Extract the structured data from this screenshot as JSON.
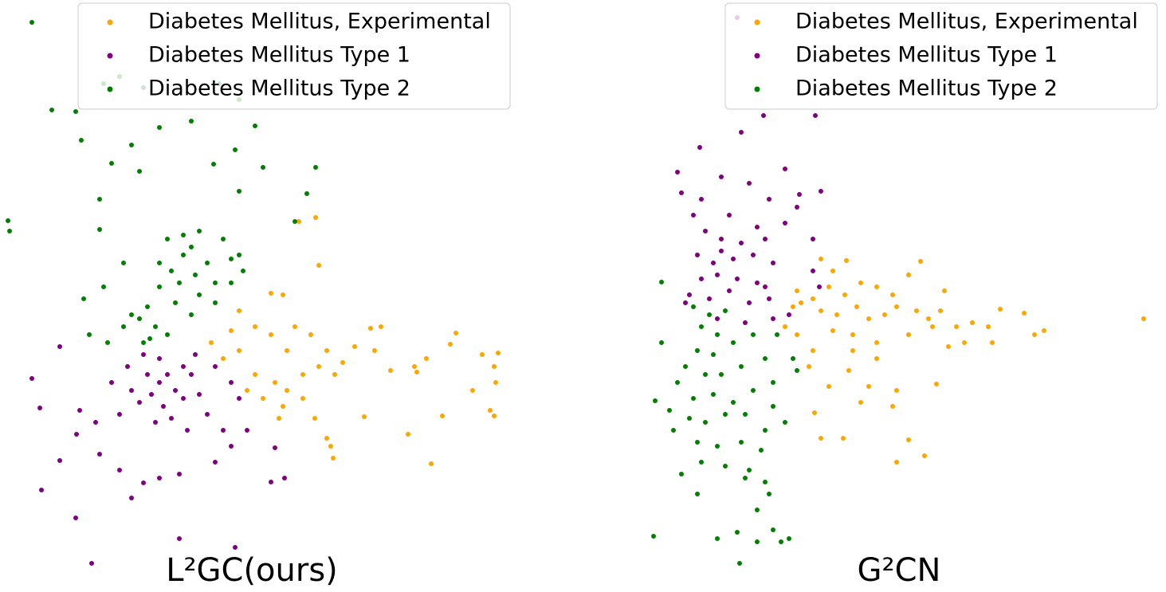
{
  "chart_data": [
    {
      "type": "scatter",
      "title": "L²GC(ours)",
      "legend": "upper right",
      "xlim": [
        0,
        640
      ],
      "ylim": [
        720,
        0
      ],
      "series": [
        {
          "name": "Diabetes Mellitus, Experimental",
          "color": "#ffa500",
          "x": [
            375,
            396,
            400,
            340,
            355,
            300,
            320,
            340,
            370,
            390,
            410,
            300,
            280,
            320,
            345,
            360,
            380,
            400,
            420,
            330,
            355,
            310,
            380,
            430,
            445,
            465,
            478,
            470,
            490,
            520,
            523,
            535,
            565,
            572,
            605,
            625,
            620,
            622,
            593,
            615,
            620,
            555,
            541,
            512,
            457,
            415,
            418,
            410,
            395,
            350,
            265,
            290,
            360
          ],
          "values": [
            278,
            273,
            333,
            368,
            370,
            390,
            410,
            420,
            410,
            420,
            440,
            440,
            450,
            470,
            480,
            490,
            470,
            460,
            470,
            500,
            510,
            490,
            500,
            455,
            435,
            412,
            410,
            440,
            465,
            460,
            467,
            450,
            432,
            418,
            445,
            443,
            460,
            480,
            490,
            515,
            522,
            522,
            582,
            545,
            523,
            560,
            575,
            550,
            525,
            525,
            430,
            415,
            440
          ]
        },
        {
          "name": "Diabetes Mellitus Type 1",
          "color": "#800080",
          "x": [
            75,
            40,
            50,
            100,
            96,
            75,
            52,
            95,
            115,
            150,
            125,
            165,
            180,
            225,
            295,
            340,
            357,
            345,
            290,
            310,
            210,
            200,
            220,
            190,
            230,
            205,
            185,
            240,
            250,
            175,
            215,
            195,
            230,
            160,
            165,
            260,
            270,
            290,
            150,
            120,
            235,
            200,
            180,
            245,
            300,
            280,
            140,
            225,
            200,
            270
          ],
          "values": [
            435,
            475,
            512,
            515,
            545,
            578,
            615,
            650,
            707,
            590,
            570,
            625,
            606,
            676,
            687,
            605,
            600,
            562,
            560,
            540,
            470,
            480,
            490,
            495,
            500,
            510,
            470,
            470,
            495,
            505,
            525,
            530,
            460,
            460,
            490,
            520,
            460,
            480,
            520,
            530,
            540,
            450,
            445,
            445,
            500,
            540,
            480,
            595,
            600,
            580
          ]
        },
        {
          "name": "Diabetes Mellitus Type 2",
          "color": "#008000",
          "x": [
            40,
            150,
            65,
            95,
            130,
            180,
            102,
            165,
            200,
            240,
            275,
            300,
            320,
            295,
            140,
            268,
            330,
            396,
            125,
            175,
            300,
            385,
            10,
            12,
            125,
            370,
            210,
            230,
            250,
            280,
            290,
            260,
            230,
            215,
            245,
            270,
            200,
            185,
            220,
            250,
            175,
            195,
            210,
            180,
            130,
            105,
            112,
            135,
            155,
            305,
            270,
            240,
            165,
            225,
            290,
            300,
            200,
            188,
            240,
            155
          ],
          "values": [
            28,
            96,
            138,
            140,
            105,
            110,
            176,
            182,
            160,
            152,
            105,
            125,
            158,
            188,
            205,
            206,
            210,
            210,
            250,
            215,
            240,
            243,
            277,
            290,
            288,
            278,
            300,
            295,
            290,
            300,
            325,
            330,
            320,
            340,
            345,
            355,
            360,
            385,
            380,
            370,
            400,
            410,
            420,
            430,
            360,
            375,
            420,
            430,
            330,
            340,
            380,
            395,
            395,
            355,
            355,
            320,
            330,
            425,
            310,
            410
          ]
        }
      ]
    },
    {
      "type": "scatter",
      "title": "G²CN",
      "legend": "upper right",
      "xlim": [
        810,
        1452
      ],
      "ylim": [
        720,
        0
      ],
      "series": [
        {
          "name": "Diabetes Mellitus, Experimental",
          "color": "#ffa500",
          "x": [
            1020,
            1030,
            1045,
            1062,
            1000,
            1020,
            1040,
            1060,
            1080,
            1100,
            1120,
            1140,
            1155,
            1005,
            1030,
            1050,
            1075,
            1090,
            1110,
            1125,
            1150,
            1165,
            1185,
            1180,
            1200,
            1220,
            1240,
            1255,
            1285,
            1298,
            1310,
            1245,
            1210,
            1190,
            1170,
            1140,
            1100,
            1070,
            1045,
            1020,
            1000,
            985,
            1070,
            1100,
            1065,
            1015,
            1040,
            1090,
            1125,
            1175,
            1120,
            1080,
            1022,
            1030,
            1058,
            1140,
            1125,
            1160,
            1435,
            995
          ],
          "values": [
            300,
            325,
            340,
            327,
            365,
            375,
            360,
            370,
            355,
            360,
            370,
            345,
            328,
            380,
            390,
            395,
            385,
            400,
            395,
            385,
            390,
            400,
            365,
            390,
            410,
            405,
            410,
            388,
            393,
            420,
            415,
            430,
            430,
            435,
            410,
            420,
            430,
            420,
            415,
            440,
            420,
            410,
            440,
            450,
            465,
            460,
            485,
            485,
            490,
            482,
            510,
            505,
            518,
            550,
            550,
            552,
            580,
            572,
            400,
            385
          ]
        },
        {
          "name": "Diabetes Mellitus Type 1",
          "color": "#800080",
          "x": [
            925,
            958,
            1023,
            930,
            878,
            850,
            905,
            940,
            985,
            1003,
            1030,
            855,
            880,
            965,
            1000,
            870,
            915,
            950,
            985,
            1020,
            885,
            905,
            930,
            960,
            875,
            895,
            920,
            945,
            970,
            900,
            925,
            880,
            950,
            1020,
            1028,
            865,
            890,
            915,
            940,
            965,
            990,
            900,
            935,
            970,
            860,
            960,
            905
          ],
          "values": [
            22,
            145,
            145,
            166,
            185,
            216,
            222,
            230,
            212,
            244,
            240,
            242,
            250,
            250,
            260,
            270,
            270,
            285,
            280,
            300,
            290,
            300,
            305,
            300,
            320,
            330,
            325,
            320,
            330,
            345,
            350,
            350,
            355,
            340,
            360,
            370,
            375,
            365,
            380,
            375,
            395,
            400,
            405,
            400,
            380,
            360,
            315
          ]
        },
        {
          "name": "Diabetes Mellitus Type 2",
          "color": "#008000",
          "x": [
            830,
            870,
            890,
            910,
            880,
            900,
            875,
            895,
            920,
            945,
            860,
            885,
            905,
            930,
            960,
            975,
            850,
            870,
            895,
            920,
            945,
            970,
            995,
            1000,
            840,
            865,
            885,
            910,
            935,
            960,
            985,
            845,
            875,
            900,
            930,
            955,
            880,
            910,
            935,
            960,
            855,
            965,
            950,
            970,
            925,
            950,
            980,
            990,
            900,
            928,
            820,
            822,
            830,
            875,
            940,
            970
          ],
          "values": [
            354,
            385,
            395,
            390,
            410,
            420,
            440,
            445,
            430,
            420,
            460,
            470,
            470,
            460,
            450,
            420,
            480,
            500,
            495,
            505,
            490,
            480,
            450,
            465,
            515,
            525,
            530,
            520,
            520,
            540,
            530,
            540,
            555,
            560,
            555,
            565,
            580,
            585,
            600,
            605,
            595,
            620,
            640,
            665,
            668,
            680,
            680,
            676,
            676,
            707,
            673,
            503,
            430,
            620,
            590,
            510
          ]
        }
      ]
    }
  ]
}
